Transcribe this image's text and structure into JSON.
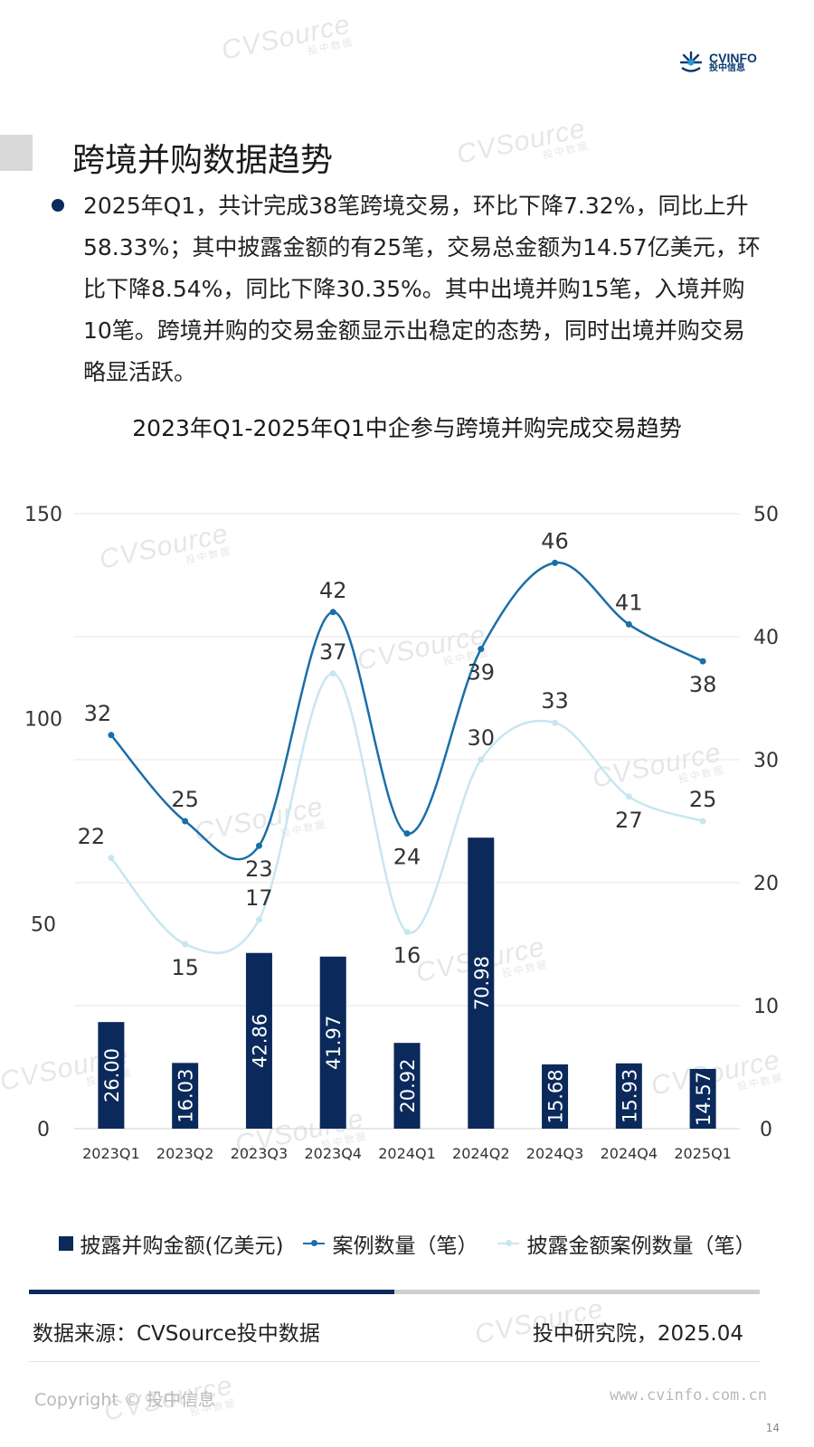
{
  "header": {
    "logo_en": "CVINFO",
    "logo_cn": "投中信息",
    "watermark": "CVSource",
    "watermark_cn": "投中数据"
  },
  "page_title": "跨境并购数据趋势",
  "summary": "2025年Q1，共计完成38笔跨境交易，环比下降7.32%，同比上升58.33%；其中披露金额的有25笔，交易总金额为14.57亿美元，环比下降8.54%，同比下降30.35%。其中出境并购15笔，入境并购10笔。跨境并购的交易金额显示出稳定的态势，同时出境并购交易略显活跃。",
  "chart_data": {
    "type": "bar",
    "title": "2023年Q1-2025年Q1中企参与跨境并购完成交易趋势",
    "categories": [
      "2023Q1",
      "2023Q2",
      "2023Q3",
      "2023Q4",
      "2024Q1",
      "2024Q2",
      "2024Q3",
      "2024Q4",
      "2025Q1"
    ],
    "series": [
      {
        "name": "披露并购金额(亿美元)",
        "type": "bar",
        "axis": "left",
        "color": "#0b2a5b",
        "values": [
          26.0,
          16.03,
          42.86,
          41.97,
          20.92,
          70.98,
          15.68,
          15.93,
          14.57
        ]
      },
      {
        "name": "案例数量（笔）",
        "type": "line",
        "axis": "right",
        "color": "#1a6ea8",
        "values": [
          32,
          25,
          23,
          42,
          24,
          39,
          46,
          41,
          38
        ]
      },
      {
        "name": "披露金额案例数量（笔）",
        "type": "line",
        "axis": "right",
        "color": "#c8e6f2",
        "values": [
          22,
          15,
          17,
          37,
          16,
          30,
          33,
          27,
          25
        ]
      }
    ],
    "y_left": {
      "min": 0,
      "max": 150,
      "ticks": [
        0,
        50,
        100,
        150
      ]
    },
    "y_right": {
      "min": 0,
      "max": 50,
      "ticks": [
        0,
        10,
        20,
        30,
        40,
        50
      ]
    },
    "grid": true,
    "legend_position": "bottom"
  },
  "footer": {
    "source": "数据来源：CVSource投中数据",
    "org_date": "投中研究院，2025.04",
    "copyright": "Copyright © 投中信息",
    "website": "www.cvinfo.com.cn",
    "page_number": "14",
    "progress": 0.5
  }
}
